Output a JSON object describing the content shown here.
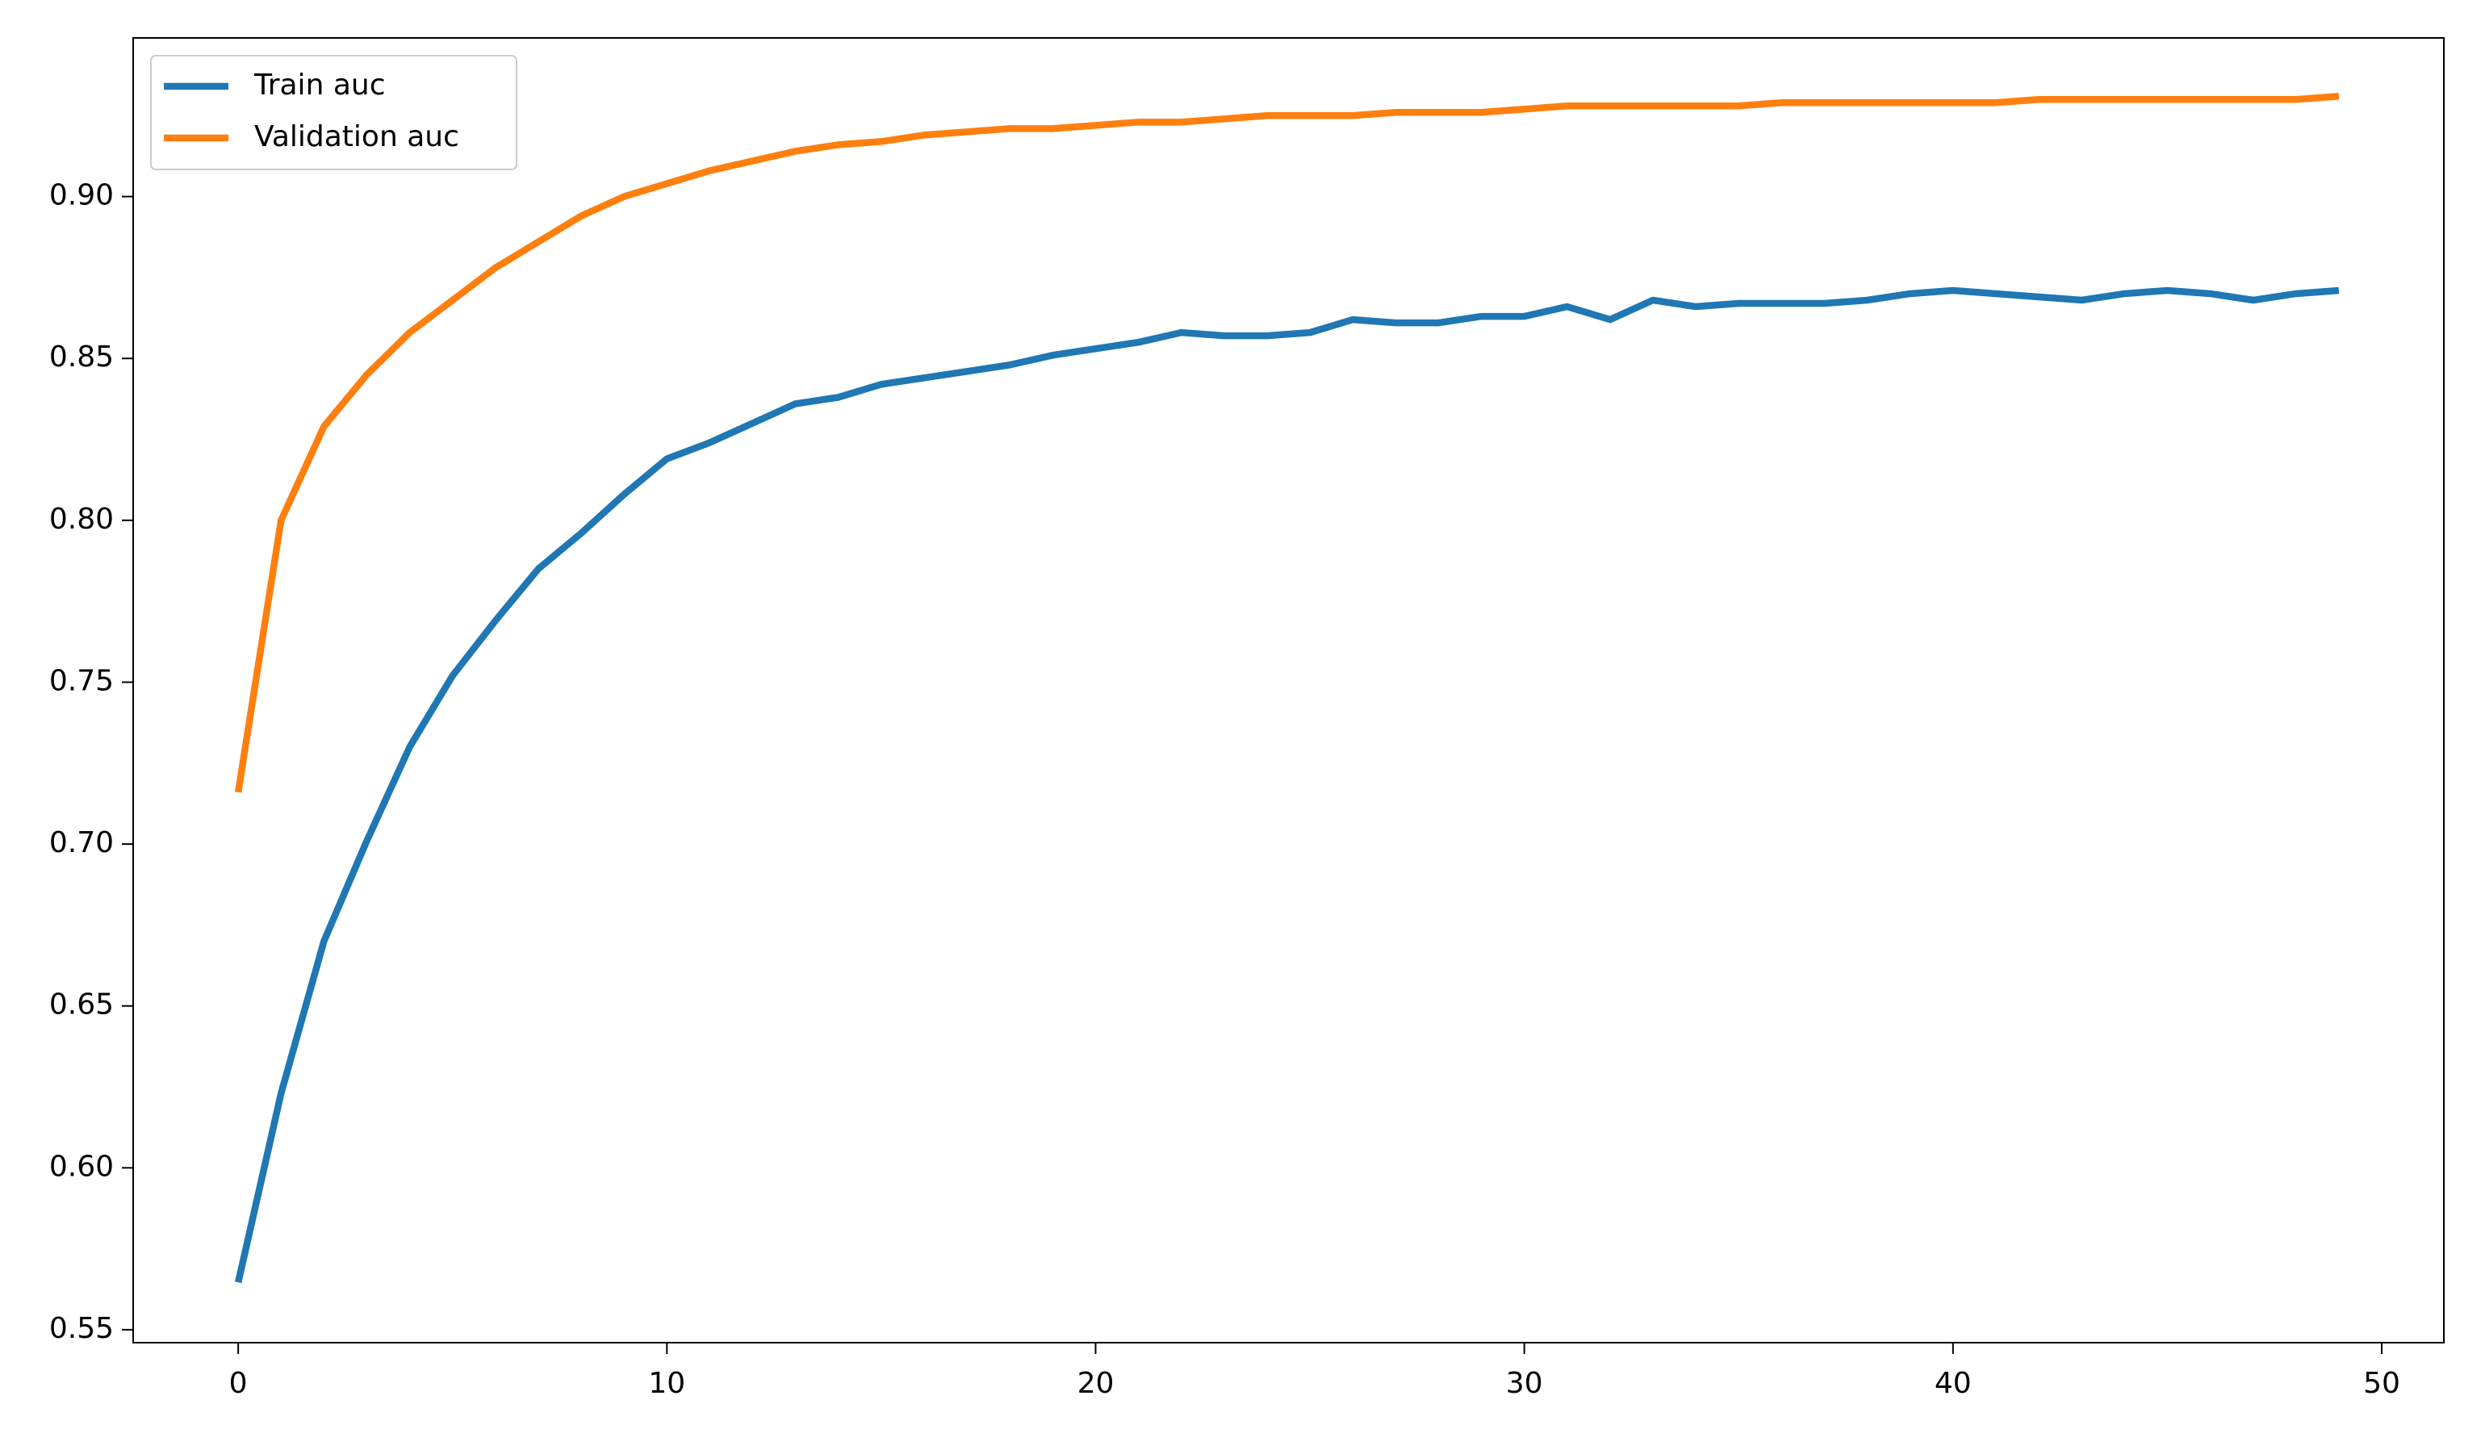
{
  "chart_data": {
    "type": "line",
    "x": [
      0,
      1,
      2,
      3,
      4,
      5,
      6,
      7,
      8,
      9,
      10,
      11,
      12,
      13,
      14,
      15,
      16,
      17,
      18,
      19,
      20,
      21,
      22,
      23,
      24,
      25,
      26,
      27,
      28,
      29,
      30,
      31,
      32,
      33,
      34,
      35,
      36,
      37,
      38,
      39,
      40,
      41,
      42,
      43,
      44,
      45,
      46,
      47,
      48,
      49
    ],
    "series": [
      {
        "name": "Train auc",
        "color": "#1f77b4",
        "values": [
          0.5646,
          0.623,
          0.67,
          0.701,
          0.73,
          0.752,
          0.769,
          0.785,
          0.796,
          0.808,
          0.819,
          0.824,
          0.83,
          0.836,
          0.838,
          0.842,
          0.844,
          0.846,
          0.848,
          0.851,
          0.853,
          0.855,
          0.858,
          0.857,
          0.857,
          0.858,
          0.862,
          0.861,
          0.861,
          0.863,
          0.863,
          0.866,
          0.862,
          0.868,
          0.866,
          0.867,
          0.867,
          0.867,
          0.868,
          0.87,
          0.871,
          0.87,
          0.869,
          0.868,
          0.87,
          0.871,
          0.87,
          0.868,
          0.87,
          0.871
        ]
      },
      {
        "name": "Validation auc",
        "color": "#ff7f0e",
        "values": [
          0.716,
          0.8,
          0.829,
          0.845,
          0.858,
          0.868,
          0.878,
          0.886,
          0.894,
          0.9,
          0.904,
          0.908,
          0.911,
          0.914,
          0.916,
          0.917,
          0.919,
          0.92,
          0.921,
          0.921,
          0.922,
          0.923,
          0.923,
          0.924,
          0.925,
          0.925,
          0.925,
          0.926,
          0.926,
          0.926,
          0.927,
          0.928,
          0.928,
          0.928,
          0.928,
          0.928,
          0.929,
          0.929,
          0.929,
          0.929,
          0.929,
          0.929,
          0.93,
          0.93,
          0.93,
          0.93,
          0.93,
          0.93,
          0.93,
          0.931
        ]
      }
    ],
    "xlim": [
      -2.45,
      51.45
    ],
    "xticks": [
      0,
      10,
      20,
      30,
      40,
      50
    ],
    "ylim": [
      0.546,
      0.949
    ],
    "yticks": [
      0.55,
      {
        "value": 0.6,
        "label": "0.60"
      },
      0.65,
      {
        "value": 0.7,
        "label": "0.70"
      },
      0.75,
      {
        "value": 0.8,
        "label": "0.80"
      },
      0.85,
      {
        "value": 0.9,
        "label": "0.90"
      }
    ],
    "legend": "upper left"
  }
}
